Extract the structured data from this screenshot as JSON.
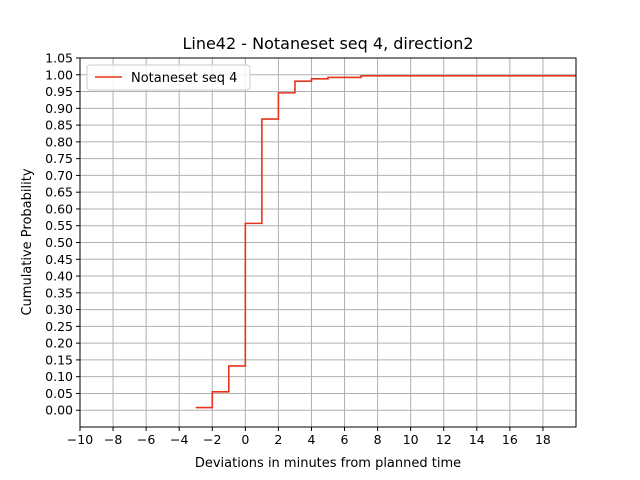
{
  "chart_data": {
    "type": "line",
    "title": "Line42 - Notaneset seq 4, direction2",
    "xlabel": "Deviations in minutes from planned time",
    "ylabel": "Cumulative Probability",
    "xlim": [
      -10,
      20
    ],
    "ylim": [
      -0.05,
      1.05
    ],
    "x_ticks": [
      -10,
      -8,
      -6,
      -4,
      -2,
      0,
      2,
      4,
      6,
      8,
      10,
      12,
      14,
      16,
      18
    ],
    "x_tick_labels": [
      "−10",
      "−8",
      "−6",
      "−4",
      "−2",
      "0",
      "2",
      "4",
      "6",
      "8",
      "10",
      "12",
      "14",
      "16",
      "18"
    ],
    "y_ticks": [
      0.0,
      0.05,
      0.1,
      0.15,
      0.2,
      0.25,
      0.3,
      0.35,
      0.4,
      0.45,
      0.5,
      0.55,
      0.6,
      0.65,
      0.7,
      0.75,
      0.8,
      0.85,
      0.9,
      0.95,
      1.0,
      1.05
    ],
    "y_tick_labels": [
      "0.00",
      "0.05",
      "0.10",
      "0.15",
      "0.20",
      "0.25",
      "0.30",
      "0.35",
      "0.40",
      "0.45",
      "0.50",
      "0.55",
      "0.60",
      "0.65",
      "0.70",
      "0.75",
      "0.80",
      "0.85",
      "0.90",
      "0.95",
      "1.00",
      "1.05"
    ],
    "grid": true,
    "legend_position": "upper-left",
    "series": [
      {
        "name": "Notaneset seq 4",
        "color": "#e8341c",
        "step": "post",
        "x": [
          -3,
          -2,
          -1,
          0,
          1,
          2,
          3,
          4,
          5,
          7,
          20
        ],
        "y": [
          0.008,
          0.055,
          0.132,
          0.557,
          0.868,
          0.946,
          0.981,
          0.988,
          0.992,
          0.997,
          0.997
        ]
      }
    ]
  }
}
